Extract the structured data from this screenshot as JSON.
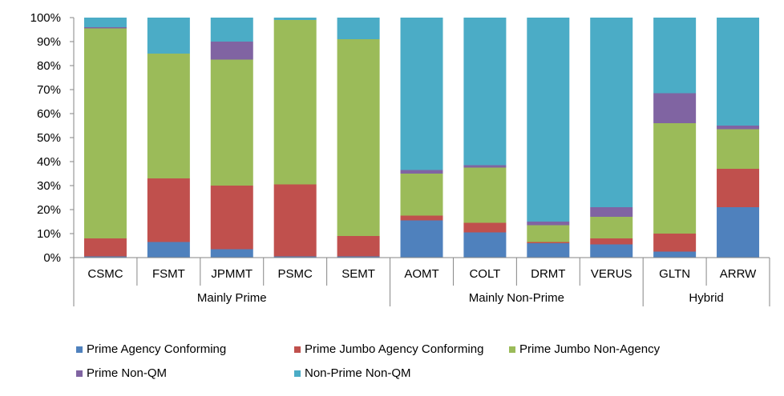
{
  "chart_data": {
    "type": "bar",
    "stacked": true,
    "percent": true,
    "categories": [
      "CSMC",
      "FSMT",
      "JPMMT",
      "PSMC",
      "SEMT",
      "AOMT",
      "COLT",
      "DRMT",
      "VERUS",
      "GLTN",
      "ARRW"
    ],
    "groups": [
      {
        "label": "Mainly Prime",
        "categories": [
          "CSMC",
          "FSMT",
          "JPMMT",
          "PSMC",
          "SEMT"
        ]
      },
      {
        "label": "Mainly Non-Prime",
        "categories": [
          "AOMT",
          "COLT",
          "DRMT",
          "VERUS"
        ]
      },
      {
        "label": "Hybrid",
        "categories": [
          "GLTN",
          "ARRW"
        ]
      }
    ],
    "series": [
      {
        "name": "Prime Agency Conforming",
        "color": "#4F81BD",
        "values": [
          0.5,
          6.5,
          3.5,
          0.5,
          0.5,
          15.5,
          10.5,
          6.0,
          5.5,
          2.5,
          21.0
        ]
      },
      {
        "name": "Prime Jumbo Agency Conforming",
        "color": "#C0504D",
        "values": [
          7.5,
          26.5,
          26.5,
          30.0,
          8.5,
          2.0,
          4.0,
          0.5,
          2.5,
          7.5,
          16.0
        ]
      },
      {
        "name": "Prime Jumbo Non-Agency",
        "color": "#9BBB59",
        "values": [
          87.5,
          52.0,
          52.5,
          68.5,
          82.0,
          17.5,
          23.0,
          7.0,
          9.0,
          46.0,
          16.5
        ]
      },
      {
        "name": "Prime Non-QM",
        "color": "#8064A2",
        "values": [
          0.5,
          0.0,
          7.5,
          0.0,
          0.0,
          1.5,
          1.0,
          1.5,
          4.0,
          12.5,
          1.5
        ]
      },
      {
        "name": "Non-Prime Non-QM",
        "color": "#4BACC6",
        "values": [
          4.0,
          15.0,
          10.0,
          1.0,
          9.0,
          63.5,
          61.5,
          85.0,
          79.0,
          31.5,
          45.0
        ]
      }
    ],
    "y_ticks": [
      "0%",
      "10%",
      "20%",
      "30%",
      "40%",
      "50%",
      "60%",
      "70%",
      "80%",
      "90%",
      "100%"
    ],
    "ylim": [
      0,
      100
    ],
    "grid": false,
    "legend_position": "bottom"
  }
}
